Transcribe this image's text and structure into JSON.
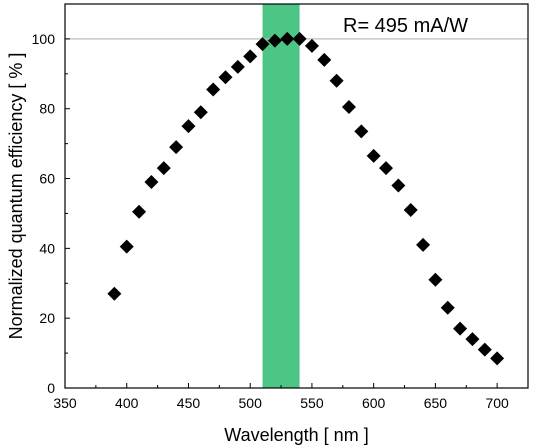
{
  "chart_data": {
    "type": "scatter",
    "title": "",
    "xlabel": "Wavelength [ nm ]",
    "ylabel": "Normalized quantum efficiency [ % ]",
    "xlim": [
      350,
      725
    ],
    "ylim": [
      0,
      110
    ],
    "xticks": [
      350,
      400,
      450,
      500,
      550,
      600,
      650,
      700
    ],
    "yticks": [
      0,
      20,
      40,
      60,
      80,
      100
    ],
    "grid": false,
    "legend": "none",
    "marker": "diamond",
    "marker_color": "#000000",
    "reference_line": {
      "y": 100,
      "color": "#bdbdbd"
    },
    "highlight_band": {
      "x_start": 510,
      "x_end": 540,
      "color": "#4cc585"
    },
    "annotation": "R= 495 mA/W",
    "series": [
      {
        "x": [
          390,
          400,
          410,
          420,
          430,
          440,
          450,
          460,
          470,
          480,
          490,
          500,
          510,
          520,
          530,
          540,
          550,
          560,
          570,
          580,
          590,
          600,
          610,
          620,
          630,
          640,
          650,
          660,
          670,
          680,
          690,
          700
        ],
        "y": [
          27,
          40.5,
          50.5,
          59,
          63,
          69,
          75,
          79,
          85.5,
          89,
          92,
          95,
          98.5,
          99.5,
          100,
          100,
          98,
          94,
          88,
          80.5,
          73.5,
          66.5,
          63,
          58,
          51,
          41,
          31,
          23,
          17,
          14,
          11,
          8.5
        ]
      }
    ]
  }
}
